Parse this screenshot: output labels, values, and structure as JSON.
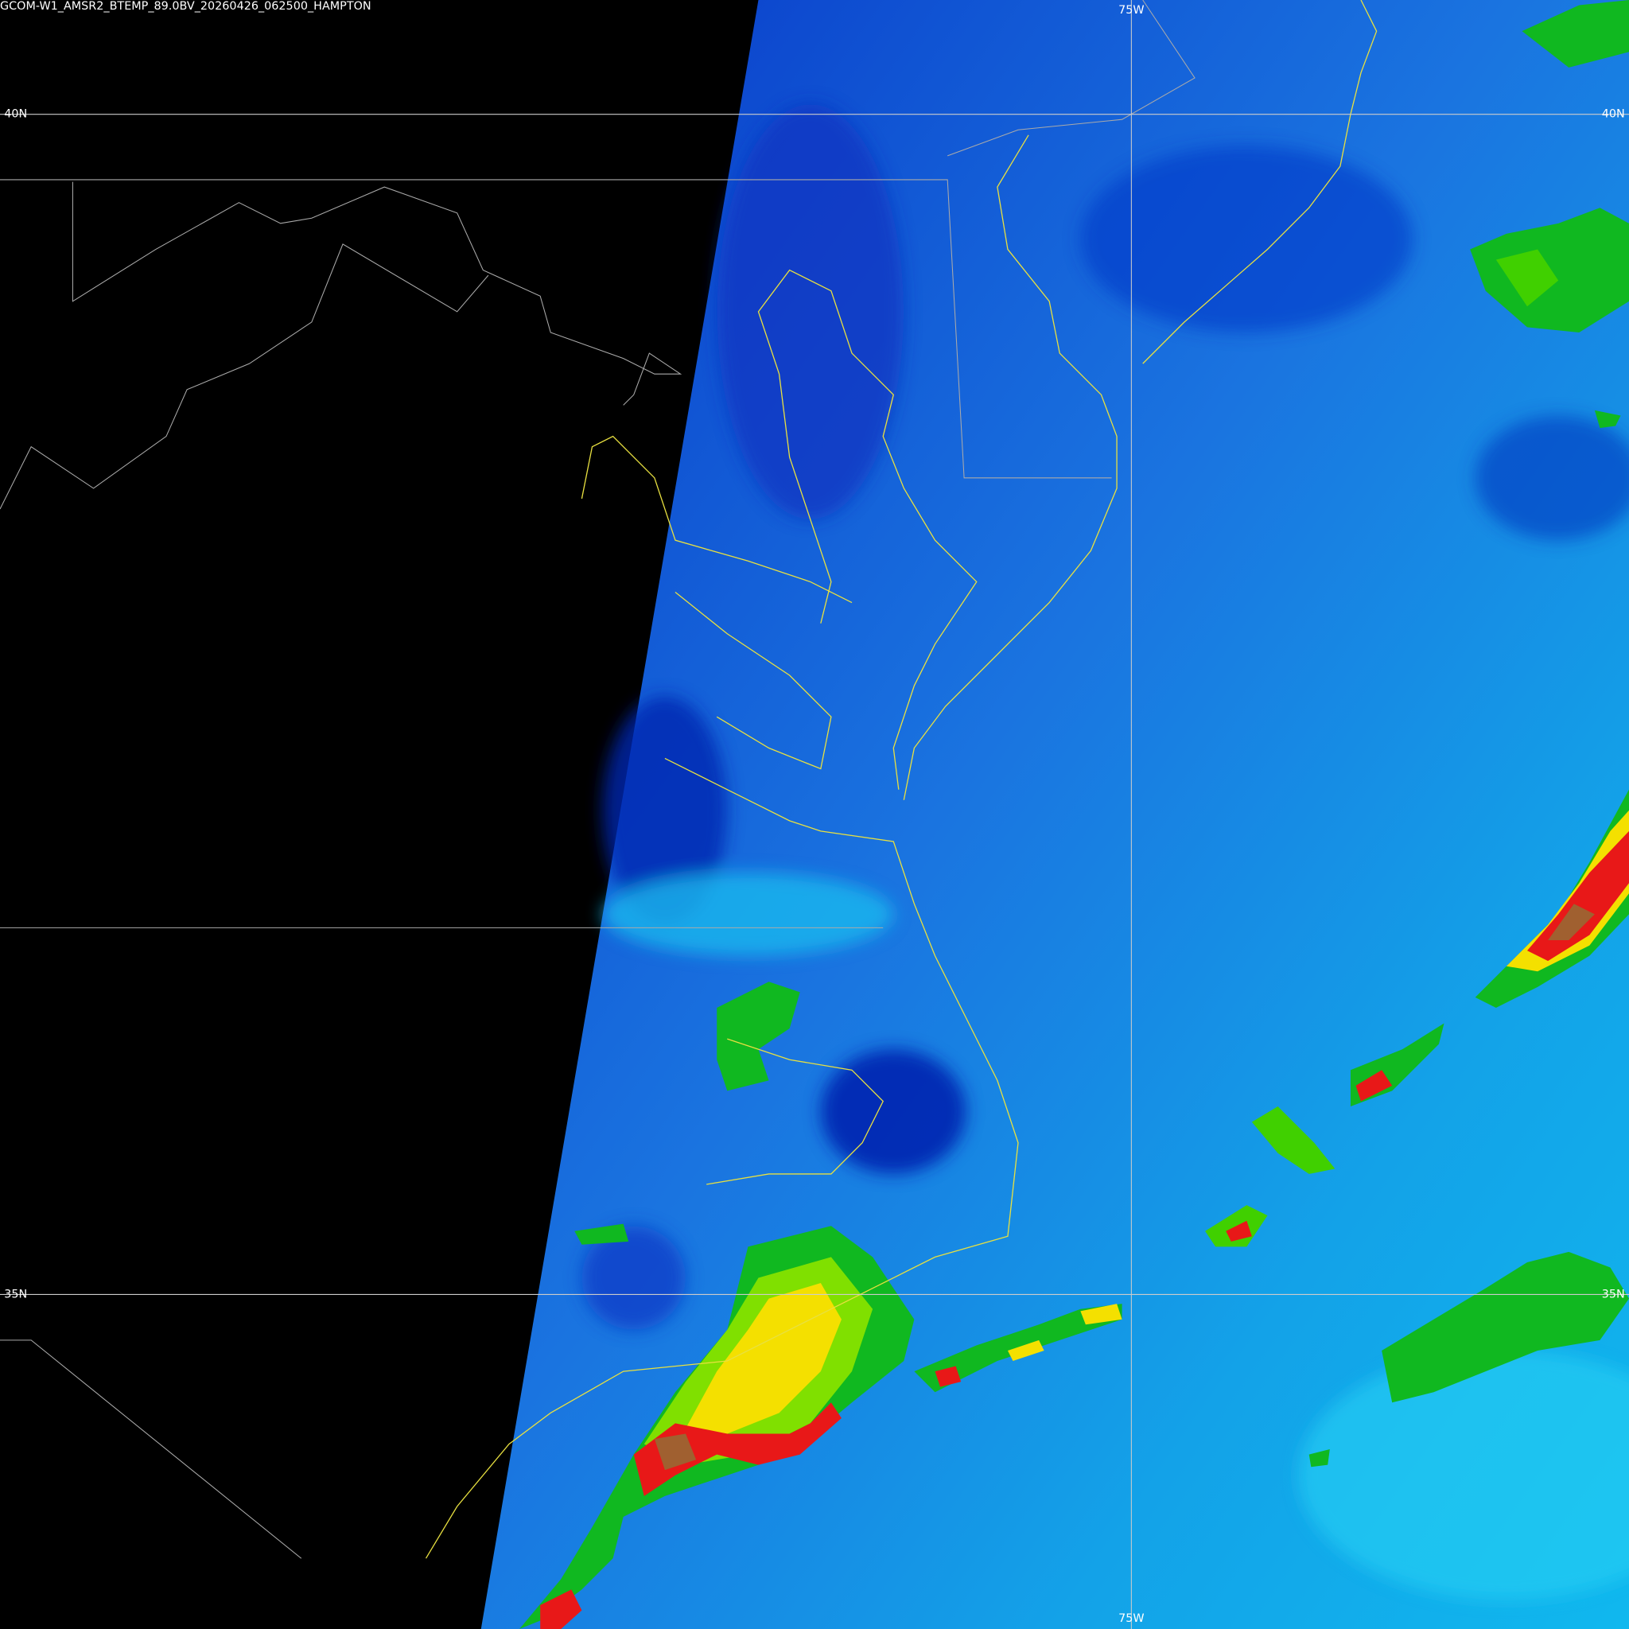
{
  "header": {
    "title": "GCOM-W1_AMSR2_BTEMP_89.0BV_20260426_062500_HAMPTON"
  },
  "graticule": {
    "meridians": [
      {
        "label": "75W"
      }
    ],
    "parallels": [
      {
        "label": "40N"
      },
      {
        "label": "35N"
      }
    ]
  }
}
